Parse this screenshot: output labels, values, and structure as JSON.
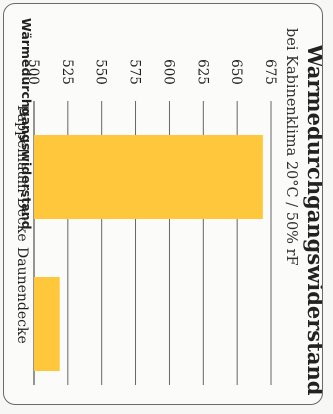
{
  "chart_data": {
    "type": "bar",
    "orientation": "horizontal",
    "title": "Wärmedurchgangswiderstand",
    "subtitle": "bei Kabinenklima 20°C / 50% rF",
    "xlabel": "Wärmedurchgangswiderstand",
    "ylabel": "",
    "categories": [
      "Pappelflaum-Decke",
      "Daunendecke"
    ],
    "values": [
      669,
      519
    ],
    "xlim": [
      500,
      675
    ],
    "ticks": [
      500,
      525,
      550,
      575,
      600,
      625,
      650,
      675
    ],
    "grid": true,
    "bar_color": "#ffc83c"
  }
}
